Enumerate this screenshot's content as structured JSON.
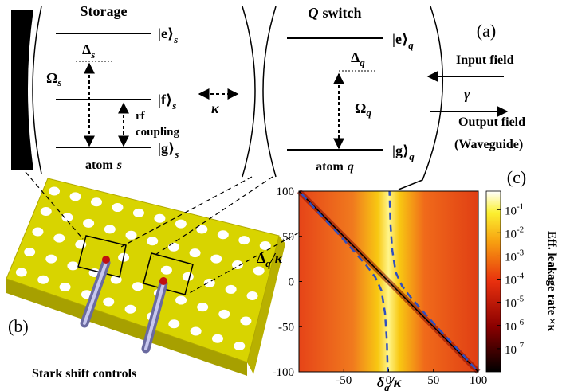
{
  "panel_a": {
    "label": "(a)",
    "storage": {
      "title": "Storage",
      "e": {
        "ket": "|e⟩",
        "sub": "s"
      },
      "delta": {
        "symbol": "Δ",
        "sub": "s"
      },
      "omega": {
        "symbol": "Ω",
        "sub": "s"
      },
      "f": {
        "ket": "|f⟩",
        "sub": "s"
      },
      "rf": [
        "rf",
        "coupling"
      ],
      "g": {
        "ket": "|g⟩",
        "sub": "s"
      },
      "atom": {
        "text": "atom",
        "name": "s"
      }
    },
    "coupling": "κ",
    "q_switch": {
      "title": {
        "symbol": "Q",
        "text": "switch"
      },
      "e": {
        "ket": "|e⟩",
        "sub": "q"
      },
      "delta": {
        "symbol": "Δ",
        "sub": "q"
      },
      "omega": {
        "symbol": "Ω",
        "sub": "q"
      },
      "g": {
        "ket": "|g⟩",
        "sub": "q"
      },
      "atom": {
        "text": "atom",
        "name": "q"
      }
    },
    "waveguide": {
      "input": "Input field",
      "gamma": "γ",
      "output": "Output field",
      "note": "(Waveguide)"
    }
  },
  "panel_b": {
    "label": "(b)",
    "caption": "Stark shift controls"
  },
  "chart_data": {
    "type": "heatmap",
    "panel_label": "(c)",
    "xlabel": {
      "symbol": "δ",
      "sub": "q",
      "rest": "/κ"
    },
    "ylabel": {
      "symbol": "Δ",
      "sub": "q",
      "rest": "/κ"
    },
    "xlim": [
      -100,
      100
    ],
    "ylim": [
      -100,
      100
    ],
    "xticks": [
      -50,
      0,
      50,
      100
    ],
    "yticks": [
      -100,
      -50,
      0,
      50,
      100
    ],
    "colorbar": {
      "label": "Eff. leakage rate ×κ",
      "scale": "log",
      "lim": [
        1e-08,
        0.63
      ],
      "ticks": [
        {
          "value": 0.1,
          "label": "10",
          "exponent": "-1"
        },
        {
          "value": 0.01,
          "label": "10",
          "exponent": "-2"
        },
        {
          "value": 0.001,
          "label": "10",
          "exponent": "-3"
        },
        {
          "value": 0.0001,
          "label": "10",
          "exponent": "-4"
        },
        {
          "value": 1e-05,
          "label": "10",
          "exponent": "-5"
        },
        {
          "value": 1e-06,
          "label": "10",
          "exponent": "-6"
        },
        {
          "value": 1e-07,
          "label": "10",
          "exponent": "-7"
        }
      ]
    },
    "lines": [
      {
        "color": "#000000",
        "style": "solid",
        "x": [
          -100,
          100
        ],
        "y": [
          100,
          -100
        ]
      },
      {
        "color": "#2f4fc0",
        "style": "dashed",
        "x": [
          -97,
          -80,
          -60,
          -40,
          -25,
          -15,
          -8,
          -4,
          -2,
          -1
        ],
        "y": [
          97,
          78,
          57,
          35,
          18,
          5,
          -10,
          -35,
          -65,
          -100
        ]
      },
      {
        "color": "#2f4fc0",
        "style": "dashed",
        "x": [
          97,
          80,
          60,
          40,
          25,
          15,
          8,
          4,
          2,
          1
        ],
        "y": [
          -97,
          -78,
          -57,
          -35,
          -18,
          -5,
          10,
          35,
          65,
          100
        ]
      }
    ]
  }
}
